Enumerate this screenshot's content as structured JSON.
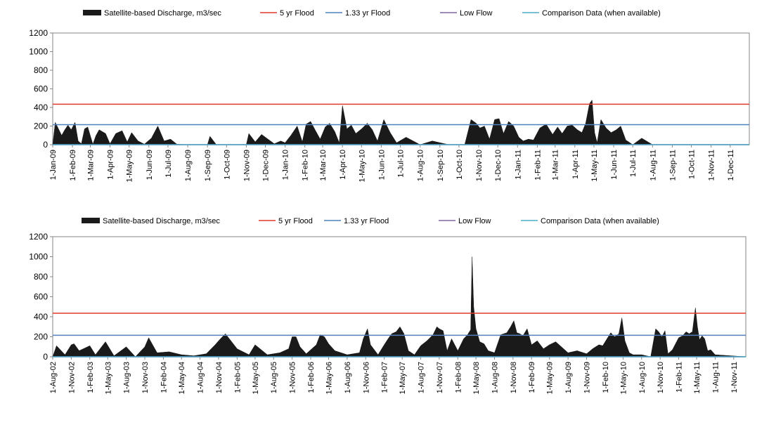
{
  "legend": {
    "discharge": "Satellite-based Discharge, m3/sec",
    "flood5": "5 yr Flood",
    "flood133": "1.33 yr Flood",
    "lowflow": "Low Flow",
    "comparison": "Comparison Data (when available)"
  },
  "colors": {
    "discharge": "#1a1a1a",
    "flood5": "#e03a2e",
    "flood133": "#4f81bd",
    "lowflow": "#8064a2",
    "comparison": "#4bacc6",
    "plot_border": "#868686",
    "background": "#ffffff"
  },
  "chart_data": [
    {
      "type": "area",
      "title": "",
      "xlabel": "",
      "ylabel": "",
      "ylim": [
        0,
        1200
      ],
      "yticks": [
        0,
        200,
        400,
        600,
        800,
        1000,
        1200
      ],
      "x_start": "2009-01-01",
      "x_end": "2011-12-31",
      "x_tick_labels": [
        "1-Jan-09",
        "1-Feb-09",
        "1-Mar-09",
        "1-Apr-09",
        "1-May-09",
        "1-Jun-09",
        "1-Jul-09",
        "1-Aug-09",
        "1-Sep-09",
        "1-Oct-09",
        "1-Nov-09",
        "1-Dec-09",
        "1-Jan-10",
        "1-Feb-10",
        "1-Mar-10",
        "1-Apr-10",
        "1-May-10",
        "1-Jun-10",
        "1-Jul-10",
        "1-Aug-10",
        "1-Sep-10",
        "1-Oct-10",
        "1-Nov-10",
        "1-Dec-10",
        "1-Jan-11",
        "1-Feb-11",
        "1-Mar-11",
        "1-Apr-11",
        "1-May-11",
        "1-Jun-11",
        "1-Jul-11",
        "1-Aug-11",
        "1-Sep-11",
        "1-Oct-11",
        "1-Nov-11",
        "1-Dec-11"
      ],
      "legend_position": "top",
      "grid": false,
      "series": [
        {
          "name": "Satellite-based Discharge, m3/sec",
          "kind": "area",
          "x": [
            "2009-01-01",
            "2009-01-05",
            "2009-01-10",
            "2009-01-15",
            "2009-01-20",
            "2009-01-25",
            "2009-01-30",
            "2009-02-05",
            "2009-02-10",
            "2009-02-15",
            "2009-02-20",
            "2009-02-25",
            "2009-03-05",
            "2009-03-10",
            "2009-03-15",
            "2009-03-25",
            "2009-04-01",
            "2009-04-10",
            "2009-04-20",
            "2009-04-28",
            "2009-05-05",
            "2009-05-15",
            "2009-05-25",
            "2009-06-05",
            "2009-06-15",
            "2009-06-25",
            "2009-07-05",
            "2009-07-15",
            "2009-08-01",
            "2009-09-01",
            "2009-09-05",
            "2009-09-15",
            "2009-10-01",
            "2009-10-20",
            "2009-11-01",
            "2009-11-05",
            "2009-11-15",
            "2009-11-25",
            "2009-12-05",
            "2009-12-15",
            "2009-12-25",
            "2010-01-01",
            "2010-01-10",
            "2010-01-20",
            "2010-01-28",
            "2010-02-03",
            "2010-02-10",
            "2010-02-17",
            "2010-02-25",
            "2010-03-05",
            "2010-03-12",
            "2010-03-20",
            "2010-03-27",
            "2010-04-01",
            "2010-04-08",
            "2010-04-15",
            "2010-04-22",
            "2010-05-01",
            "2010-05-10",
            "2010-05-18",
            "2010-05-26",
            "2010-06-05",
            "2010-06-15",
            "2010-06-25",
            "2010-07-10",
            "2010-08-01",
            "2010-08-20",
            "2010-09-15",
            "2010-10-10",
            "2010-10-20",
            "2010-10-28",
            "2010-11-03",
            "2010-11-10",
            "2010-11-18",
            "2010-11-26",
            "2010-12-03",
            "2010-12-10",
            "2010-12-18",
            "2010-12-26",
            "2011-01-03",
            "2011-01-10",
            "2011-01-18",
            "2011-01-26",
            "2011-02-05",
            "2011-02-15",
            "2011-02-25",
            "2011-03-05",
            "2011-03-12",
            "2011-03-20",
            "2011-03-28",
            "2011-04-05",
            "2011-04-12",
            "2011-04-18",
            "2011-04-24",
            "2011-04-28",
            "2011-05-02",
            "2011-05-06",
            "2011-05-12",
            "2011-05-20",
            "2011-05-28",
            "2011-06-05",
            "2011-06-12",
            "2011-06-20",
            "2011-07-01",
            "2011-07-15",
            "2011-08-01",
            "2011-09-01",
            "2011-12-31"
          ],
          "y": [
            0,
            240,
            170,
            100,
            160,
            210,
            160,
            240,
            40,
            10,
            170,
            190,
            5,
            100,
            160,
            120,
            10,
            120,
            150,
            30,
            130,
            40,
            5,
            70,
            200,
            40,
            60,
            5,
            0,
            0,
            90,
            0,
            0,
            0,
            0,
            120,
            30,
            110,
            60,
            10,
            40,
            20,
            100,
            200,
            30,
            220,
            250,
            160,
            60,
            190,
            230,
            140,
            20,
            420,
            170,
            210,
            120,
            170,
            230,
            160,
            40,
            270,
            130,
            20,
            80,
            0,
            40,
            0,
            0,
            270,
            230,
            180,
            200,
            60,
            270,
            280,
            120,
            250,
            200,
            80,
            40,
            60,
            50,
            180,
            220,
            110,
            190,
            120,
            200,
            210,
            160,
            130,
            230,
            440,
            480,
            130,
            20,
            270,
            180,
            130,
            160,
            200,
            50,
            0,
            70,
            0,
            0,
            0
          ]
        },
        {
          "name": "5 yr Flood",
          "kind": "line",
          "value": 435
        },
        {
          "name": "1.33 yr Flood",
          "kind": "line",
          "value": 215
        },
        {
          "name": "Low Flow",
          "kind": "line",
          "value": 0
        },
        {
          "name": "Comparison Data (when available)",
          "kind": "line",
          "value": 0
        }
      ]
    },
    {
      "type": "area",
      "title": "",
      "xlabel": "",
      "ylabel": "",
      "ylim": [
        0,
        1200
      ],
      "yticks": [
        0,
        200,
        400,
        600,
        800,
        1000,
        1200
      ],
      "x_start": "2002-08-01",
      "x_end": "2011-12-31",
      "x_tick_labels": [
        "1-Aug-02",
        "1-Nov-02",
        "1-Feb-03",
        "1-May-03",
        "1-Aug-03",
        "1-Nov-03",
        "1-Feb-04",
        "1-May-04",
        "1-Aug-04",
        "1-Nov-04",
        "1-Feb-05",
        "1-May-05",
        "1-Aug-05",
        "1-Nov-05",
        "1-Feb-06",
        "1-May-06",
        "1-Aug-06",
        "1-Nov-06",
        "1-Feb-07",
        "1-May-07",
        "1-Aug-07",
        "1-Nov-07",
        "1-Feb-08",
        "1-May-08",
        "1-Aug-08",
        "1-Nov-08",
        "1-Feb-09",
        "1-May-09",
        "1-Aug-09",
        "1-Nov-09",
        "1-Feb-10",
        "1-May-10",
        "1-Aug-10",
        "1-Nov-10",
        "1-Feb-11",
        "1-May-11",
        "1-Aug-11",
        "1-Nov-11"
      ],
      "legend_position": "top",
      "grid": false,
      "series": [
        {
          "name": "Satellite-based Discharge, m3/sec",
          "kind": "area",
          "x": [
            "2002-08-01",
            "2002-08-20",
            "2002-10-01",
            "2002-11-01",
            "2002-11-15",
            "2002-12-10",
            "2003-02-01",
            "2003-03-01",
            "2003-04-20",
            "2003-06-01",
            "2003-08-01",
            "2003-09-15",
            "2003-11-01",
            "2003-11-20",
            "2004-01-01",
            "2004-03-01",
            "2004-05-01",
            "2004-07-01",
            "2004-09-01",
            "2004-10-15",
            "2004-11-01",
            "2004-11-20",
            "2004-12-05",
            "2005-02-01",
            "2005-04-01",
            "2005-05-01",
            "2005-07-01",
            "2005-09-01",
            "2005-10-15",
            "2005-11-01",
            "2005-11-20",
            "2005-12-10",
            "2006-01-10",
            "2006-03-01",
            "2006-03-20",
            "2006-04-10",
            "2006-05-01",
            "2006-06-01",
            "2006-08-01",
            "2006-10-01",
            "2006-10-20",
            "2006-11-10",
            "2006-11-25",
            "2007-01-01",
            "2007-02-01",
            "2007-02-20",
            "2007-03-10",
            "2007-04-01",
            "2007-04-20",
            "2007-05-10",
            "2007-06-01",
            "2007-07-01",
            "2007-08-01",
            "2007-09-01",
            "2007-10-01",
            "2007-10-20",
            "2007-11-01",
            "2007-11-20",
            "2007-12-10",
            "2008-01-01",
            "2008-02-01",
            "2008-03-01",
            "2008-03-20",
            "2008-04-05",
            "2008-04-12",
            "2008-04-20",
            "2008-05-01",
            "2008-05-20",
            "2008-06-10",
            "2008-07-01",
            "2008-08-01",
            "2008-09-01",
            "2008-10-01",
            "2008-10-20",
            "2008-11-05",
            "2008-11-20",
            "2008-12-05",
            "2008-12-20",
            "2009-01-10",
            "2009-02-01",
            "2009-03-01",
            "2009-04-01",
            "2009-05-01",
            "2009-06-01",
            "2009-08-01",
            "2009-09-15",
            "2009-11-01",
            "2009-12-01",
            "2010-01-01",
            "2010-01-20",
            "2010-02-10",
            "2010-03-01",
            "2010-03-20",
            "2010-04-10",
            "2010-04-25",
            "2010-05-10",
            "2010-06-01",
            "2010-06-20",
            "2010-08-01",
            "2010-09-15",
            "2010-10-10",
            "2010-10-25",
            "2010-11-10",
            "2010-11-25",
            "2010-12-10",
            "2011-01-01",
            "2011-02-01",
            "2011-02-20",
            "2011-03-10",
            "2011-03-25",
            "2011-04-10",
            "2011-04-25",
            "2011-05-05",
            "2011-05-15",
            "2011-05-28",
            "2011-06-10",
            "2011-06-25",
            "2011-07-10",
            "2011-08-01",
            "2011-12-31"
          ],
          "y": [
            0,
            110,
            20,
            120,
            130,
            60,
            110,
            20,
            150,
            10,
            100,
            0,
            100,
            190,
            40,
            50,
            20,
            10,
            30,
            120,
            160,
            200,
            230,
            80,
            20,
            120,
            20,
            40,
            80,
            200,
            200,
            100,
            30,
            120,
            220,
            200,
            130,
            60,
            20,
            40,
            180,
            280,
            120,
            20,
            120,
            180,
            230,
            250,
            300,
            230,
            60,
            20,
            110,
            160,
            220,
            300,
            280,
            260,
            60,
            180,
            60,
            180,
            220,
            270,
            1000,
            500,
            280,
            150,
            130,
            60,
            40,
            220,
            240,
            300,
            360,
            240,
            230,
            210,
            280,
            120,
            160,
            80,
            120,
            150,
            40,
            60,
            30,
            80,
            120,
            110,
            180,
            240,
            200,
            230,
            390,
            160,
            40,
            20,
            20,
            0,
            280,
            250,
            200,
            260,
            30,
            70,
            190,
            210,
            250,
            230,
            250,
            490,
            300,
            170,
            210,
            180,
            60,
            70,
            20,
            0
          ]
        },
        {
          "name": "5 yr Flood",
          "kind": "line",
          "value": 435
        },
        {
          "name": "1.33 yr Flood",
          "kind": "line",
          "value": 215
        },
        {
          "name": "Low Flow",
          "kind": "line",
          "value": 0
        },
        {
          "name": "Comparison Data (when available)",
          "kind": "line",
          "value": 0
        }
      ]
    }
  ]
}
